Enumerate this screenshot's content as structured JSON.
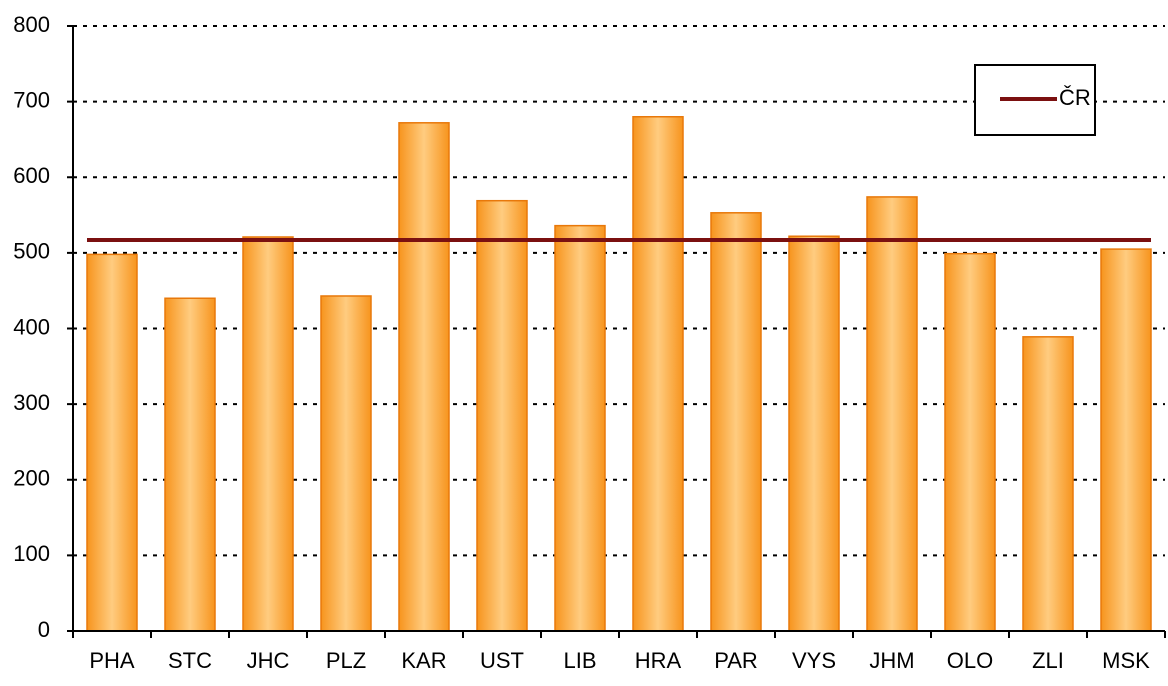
{
  "chart_data": {
    "type": "bar",
    "categories": [
      "PHA",
      "STC",
      "JHC",
      "PLZ",
      "KAR",
      "UST",
      "LIB",
      "HRA",
      "PAR",
      "VYS",
      "JHM",
      "OLO",
      "ZLI",
      "MSK"
    ],
    "values": [
      498,
      440,
      521,
      443,
      672,
      569,
      536,
      680,
      553,
      522,
      574,
      499,
      389,
      505
    ],
    "color": "#f79a2e",
    "series": [
      {
        "name": "ČR",
        "color": "#7b1010",
        "values": [
          517,
          517,
          517,
          517,
          517,
          517,
          517,
          517,
          517,
          517,
          517,
          517,
          517,
          517
        ]
      }
    ],
    "ylim": [
      0,
      800
    ],
    "yticks": [
      0,
      100,
      200,
      300,
      400,
      500,
      600,
      700,
      800
    ],
    "grid": true,
    "legend": "top-right"
  }
}
